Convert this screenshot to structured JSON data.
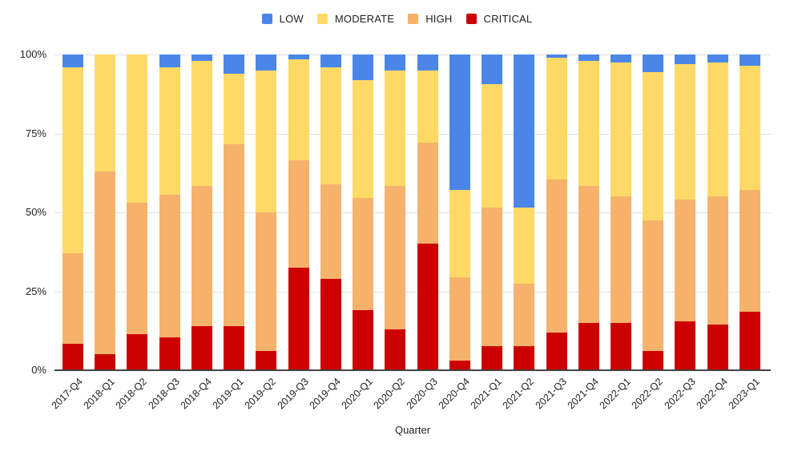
{
  "legend": {
    "items": [
      {
        "label": "LOW",
        "color": "#4A86E8"
      },
      {
        "label": "MODERATE",
        "color": "#FFD966"
      },
      {
        "label": "HIGH",
        "color": "#F6B26B"
      },
      {
        "label": "CRITICAL",
        "color": "#CC0000"
      }
    ]
  },
  "axes": {
    "y_ticks": [
      "100%",
      "75%",
      "50%",
      "25%",
      "0%"
    ],
    "x_title": "Quarter"
  },
  "colors": {
    "gridline": "#e0e0e0",
    "baseline": "#424242",
    "background": "#ffffff"
  },
  "chart_data": {
    "type": "bar",
    "stacked": true,
    "percent_stacked": true,
    "title": "",
    "xlabel": "Quarter",
    "ylabel": "",
    "ylim": [
      0,
      100
    ],
    "y_tick_labels": [
      "0%",
      "25%",
      "50%",
      "75%",
      "100%"
    ],
    "grid": true,
    "legend_position": "top",
    "categories": [
      "2017-Q4",
      "2018-Q1",
      "2018-Q2",
      "2018-Q3",
      "2018-Q4",
      "2019-Q1",
      "2019-Q2",
      "2019-Q3",
      "2019-Q4",
      "2020-Q1",
      "2020-Q2",
      "2020-Q3",
      "2020-Q4",
      "2021-Q1",
      "2021-Q2",
      "2021-Q3",
      "2021-Q4",
      "2022-Q1",
      "2022-Q2",
      "2022-Q3",
      "2022-Q4",
      "2023-Q1"
    ],
    "series": [
      {
        "name": "CRITICAL",
        "color": "#CC0000",
        "values": [
          8.5,
          5,
          11.5,
          10.5,
          14,
          14,
          6,
          32.5,
          29,
          19,
          13,
          40,
          3,
          7.5,
          7.5,
          12,
          15,
          15,
          6,
          15.5,
          14.5,
          18.5
        ]
      },
      {
        "name": "HIGH",
        "color": "#F6B26B",
        "values": [
          28.5,
          58,
          41.5,
          45,
          44.5,
          57.5,
          44,
          34,
          30,
          35.5,
          45.5,
          32,
          26.5,
          44,
          20,
          48.5,
          43.5,
          40,
          41.5,
          38.5,
          40.5,
          38.5
        ]
      },
      {
        "name": "MODERATE",
        "color": "#FFD966",
        "values": [
          59,
          37,
          47,
          40.5,
          39.5,
          22.5,
          45,
          32,
          37,
          37.5,
          36.5,
          23,
          27.5,
          39,
          24,
          38.5,
          39.5,
          42.5,
          47,
          43,
          42.5,
          39.5
        ]
      },
      {
        "name": "LOW",
        "color": "#4A86E8",
        "values": [
          4,
          0,
          0,
          4,
          2,
          6,
          5,
          1.5,
          4,
          8,
          5,
          5,
          43,
          9.5,
          48.5,
          1,
          2,
          2.5,
          5.5,
          3,
          2.5,
          3.5
        ]
      }
    ]
  }
}
